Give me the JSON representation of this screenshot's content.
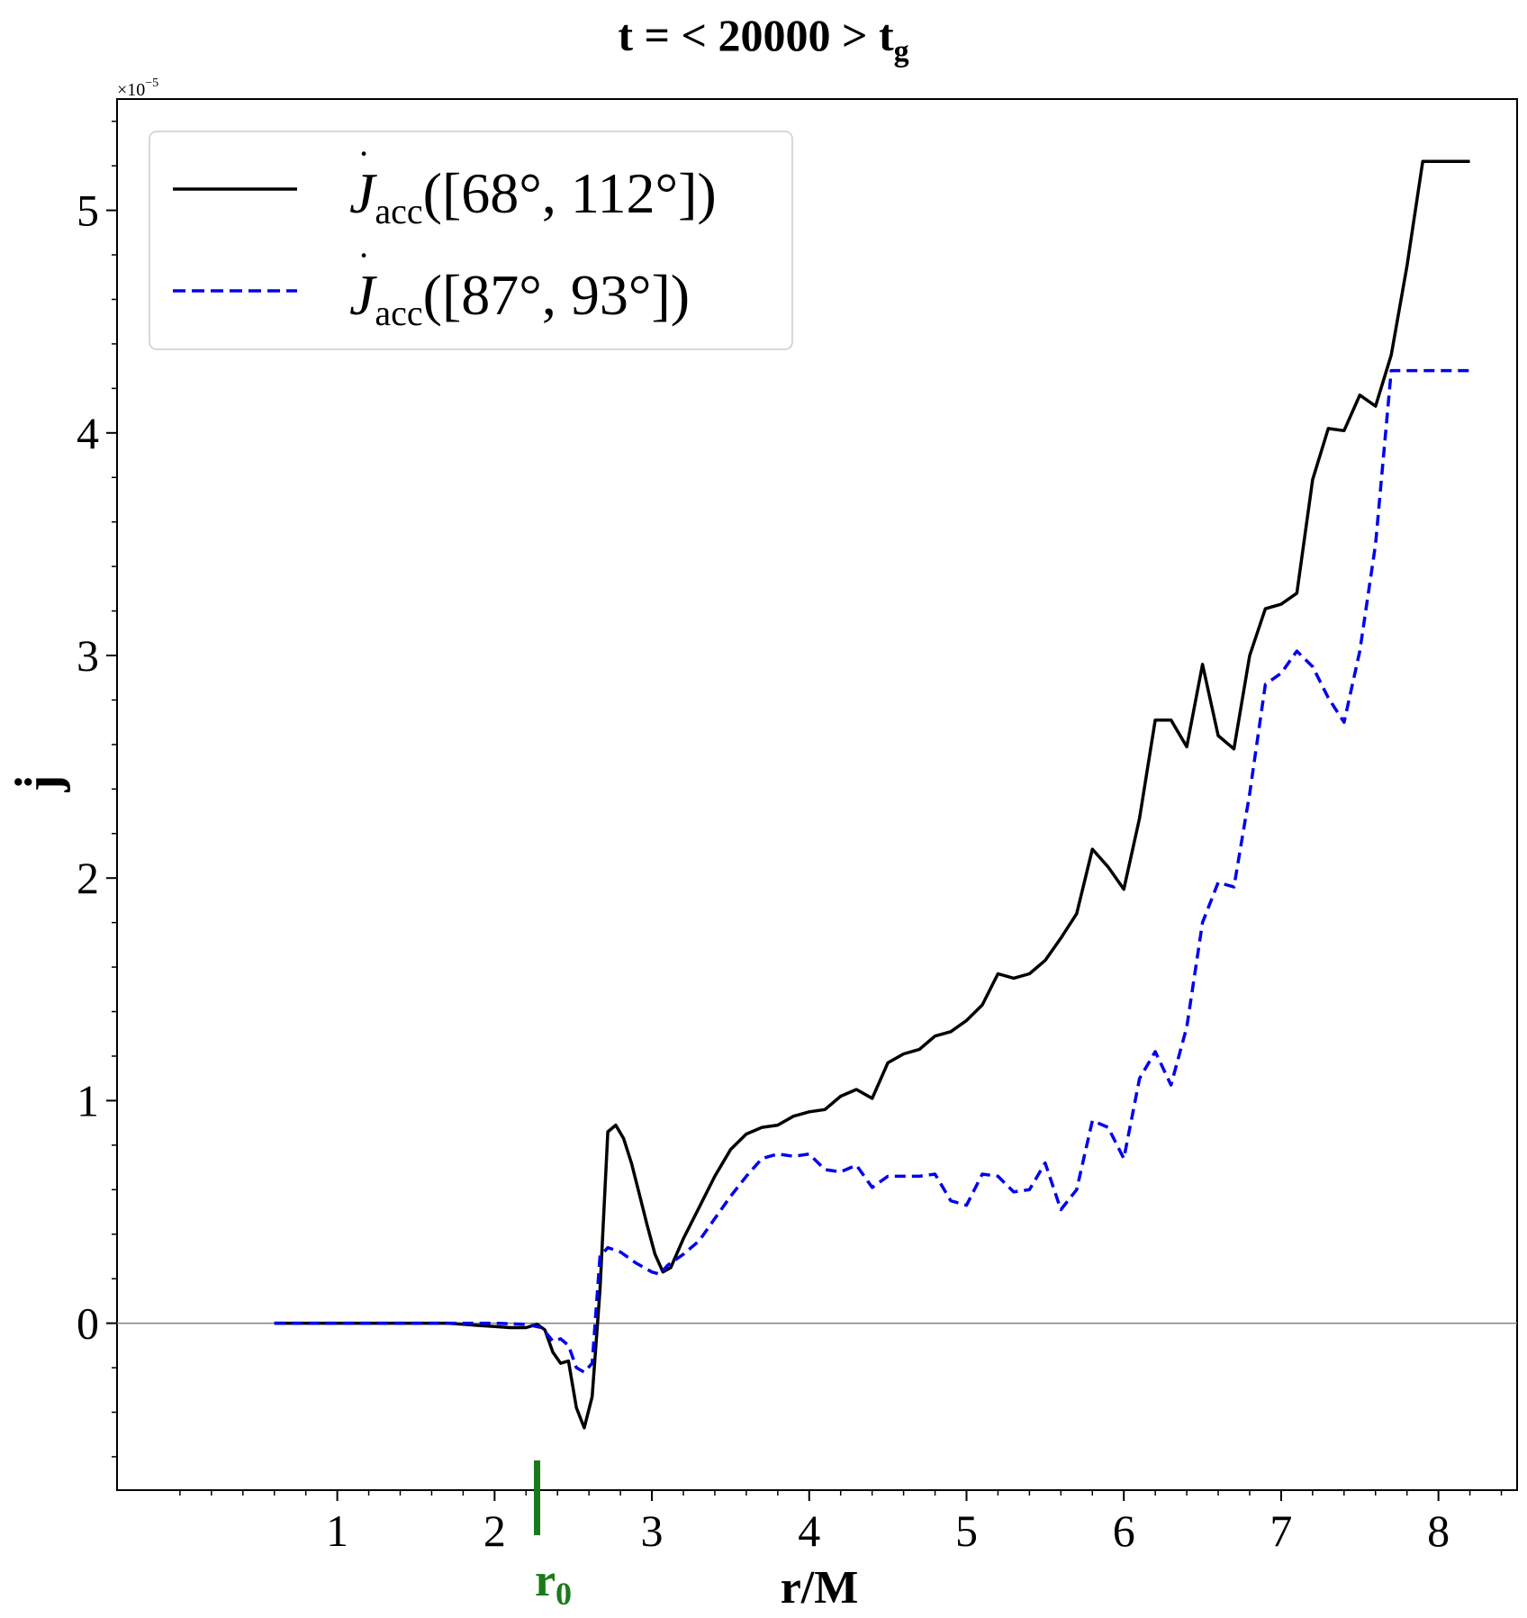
{
  "chart_data": {
    "type": "line",
    "title": "t = < 20000 >  t",
    "title_subscript": "g",
    "xlabel": "r/M",
    "ylabel": "j̇",
    "y_multiplier": "×10",
    "y_multiplier_exponent": "−5",
    "xlim": [
      -0.4,
      8.5
    ],
    "ylim": [
      -0.75,
      5.5
    ],
    "x_ticks": [
      "1",
      "2",
      "3",
      "4",
      "5",
      "6",
      "7",
      "8"
    ],
    "y_ticks": [
      "0",
      "1",
      "2",
      "3",
      "4",
      "5"
    ],
    "x_tick_values": [
      1,
      2,
      3,
      4,
      5,
      6,
      7,
      8
    ],
    "y_tick_values": [
      0,
      1,
      2,
      3,
      4,
      5
    ],
    "grid": false,
    "legend_position": "top-left",
    "zero_line": true,
    "annotation": {
      "label": "r",
      "label_subscript": "0",
      "x": 2.27,
      "color": "#1a7a1a"
    },
    "series": [
      {
        "name": "J̇acc([68°, 112°])",
        "name_main": "J",
        "name_sub": "acc",
        "name_args": "([68°, 112°])",
        "color": "#000000",
        "style": "solid",
        "x": [
          0.6,
          1.0,
          1.5,
          1.7,
          1.8,
          1.9,
          2.0,
          2.1,
          2.2,
          2.27,
          2.32,
          2.37,
          2.42,
          2.47,
          2.52,
          2.57,
          2.62,
          2.67,
          2.72,
          2.77,
          2.82,
          2.87,
          2.92,
          2.97,
          3.02,
          3.07,
          3.12,
          3.2,
          3.3,
          3.4,
          3.5,
          3.6,
          3.7,
          3.8,
          3.9,
          4.0,
          4.1,
          4.2,
          4.3,
          4.4,
          4.5,
          4.6,
          4.7,
          4.8,
          4.9,
          5.0,
          5.1,
          5.2,
          5.3,
          5.4,
          5.5,
          5.6,
          5.7,
          5.8,
          5.9,
          6.0,
          6.1,
          6.2,
          6.3,
          6.4,
          6.5,
          6.6,
          6.7,
          6.8,
          6.9,
          7.0,
          7.1,
          7.2,
          7.3,
          7.4,
          7.5,
          7.6,
          7.7,
          7.8,
          7.9,
          8.0,
          8.1,
          8.2
        ],
        "y": [
          0.0,
          0.0,
          0.0,
          0.0,
          -0.005,
          -0.01,
          -0.015,
          -0.02,
          -0.02,
          -0.005,
          -0.03,
          -0.13,
          -0.18,
          -0.17,
          -0.38,
          -0.47,
          -0.33,
          0.15,
          0.86,
          0.89,
          0.83,
          0.72,
          0.58,
          0.44,
          0.31,
          0.23,
          0.25,
          0.38,
          0.52,
          0.66,
          0.78,
          0.85,
          0.88,
          0.89,
          0.93,
          0.95,
          0.96,
          1.02,
          1.05,
          1.01,
          1.17,
          1.21,
          1.23,
          1.29,
          1.31,
          1.36,
          1.43,
          1.57,
          1.55,
          1.57,
          1.63,
          1.73,
          1.84,
          2.13,
          2.05,
          1.95,
          2.27,
          2.71,
          2.71,
          2.59,
          2.96,
          2.64,
          2.58,
          3.0,
          3.21,
          3.23,
          3.28,
          3.79,
          4.02,
          4.01,
          4.17,
          4.12,
          4.35,
          4.75,
          5.22,
          5.22,
          5.22,
          5.22
        ]
      },
      {
        "name": "J̇acc([87°, 93°])",
        "name_main": "J",
        "name_sub": "acc",
        "name_args": "([87°, 93°])",
        "color": "#0000ee",
        "style": "dashed",
        "x": [
          0.6,
          1.0,
          1.5,
          1.8,
          2.0,
          2.2,
          2.3,
          2.37,
          2.42,
          2.47,
          2.52,
          2.57,
          2.62,
          2.67,
          2.72,
          2.8,
          2.9,
          3.0,
          3.05,
          3.1,
          3.2,
          3.3,
          3.4,
          3.5,
          3.6,
          3.7,
          3.8,
          3.9,
          4.0,
          4.1,
          4.2,
          4.3,
          4.4,
          4.5,
          4.6,
          4.7,
          4.8,
          4.9,
          5.0,
          5.1,
          5.2,
          5.3,
          5.4,
          5.5,
          5.6,
          5.7,
          5.8,
          5.9,
          6.0,
          6.1,
          6.2,
          6.3,
          6.4,
          6.5,
          6.6,
          6.7,
          6.8,
          6.9,
          7.0,
          7.1,
          7.2,
          7.3,
          7.4,
          7.5,
          7.6,
          7.7,
          7.8,
          7.9,
          8.0,
          8.1,
          8.2
        ],
        "y": [
          0.0,
          0.0,
          0.0,
          0.0,
          0.0,
          -0.005,
          -0.02,
          -0.08,
          -0.07,
          -0.1,
          -0.2,
          -0.22,
          -0.18,
          0.3,
          0.34,
          0.32,
          0.27,
          0.23,
          0.22,
          0.26,
          0.31,
          0.37,
          0.47,
          0.57,
          0.66,
          0.74,
          0.76,
          0.75,
          0.76,
          0.69,
          0.68,
          0.71,
          0.61,
          0.66,
          0.66,
          0.66,
          0.67,
          0.55,
          0.53,
          0.67,
          0.66,
          0.59,
          0.6,
          0.72,
          0.51,
          0.6,
          0.91,
          0.88,
          0.74,
          1.1,
          1.22,
          1.07,
          1.33,
          1.8,
          1.98,
          1.96,
          2.38,
          2.87,
          2.92,
          3.02,
          2.95,
          2.81,
          2.7,
          3.02,
          3.5,
          4.28,
          4.28,
          4.28,
          4.28,
          4.28,
          4.28
        ]
      }
    ]
  }
}
